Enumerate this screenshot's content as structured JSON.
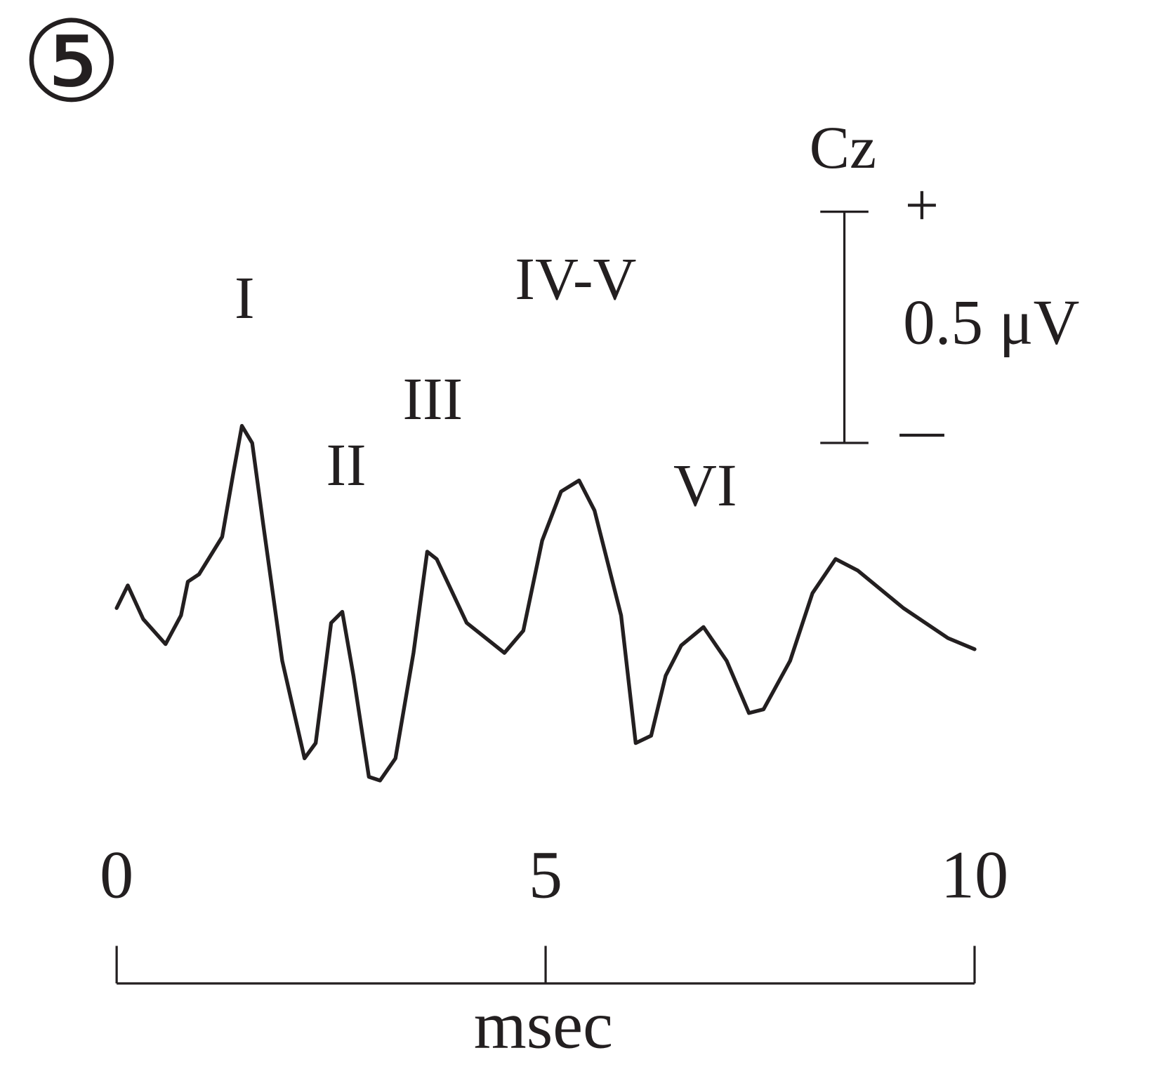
{
  "chart_data": {
    "type": "line",
    "figure_label": "⑤",
    "channel": "Cz",
    "x": [
      0,
      0.13,
      0.31,
      0.57,
      0.75,
      0.83,
      0.96,
      1.23,
      1.36,
      1.46,
      1.58,
      1.71,
      1.93,
      2.19,
      2.32,
      2.5,
      2.63,
      2.76,
      2.94,
      3.07,
      3.25,
      3.46,
      3.62,
      3.73,
      4.08,
      4.52,
      4.74,
      4.96,
      5.18,
      5.39,
      5.57,
      5.88,
      6.05,
      6.23,
      6.4,
      6.58,
      6.84,
      7.11,
      7.37,
      7.54,
      7.85,
      8.11,
      8.38,
      8.64,
      9.17,
      9.69,
      10
    ],
    "series": [
      {
        "color": "#231f20",
        "values": [
          0,
          0.049,
          -0.024,
          -0.078,
          -0.016,
          0.057,
          0.073,
          0.154,
          0.292,
          0.394,
          0.357,
          0.179,
          -0.114,
          -0.325,
          -0.292,
          -0.032,
          -0.008,
          -0.146,
          -0.365,
          -0.373,
          -0.325,
          -0.097,
          0.122,
          0.106,
          -0.032,
          -0.097,
          -0.049,
          0.146,
          0.252,
          0.276,
          0.211,
          -0.016,
          -0.292,
          -0.276,
          -0.146,
          -0.081,
          -0.041,
          -0.114,
          -0.227,
          -0.219,
          -0.114,
          0.032,
          0.106,
          0.081,
          0,
          -0.065,
          -0.089
        ]
      }
    ],
    "annotations": [
      "I",
      "II",
      "III",
      "IV-V",
      "VI"
    ],
    "scale_bar": {
      "value": 0.5,
      "label": "0.5 μV",
      "plus": "+",
      "minus": "−"
    },
    "xlim": [
      0,
      10
    ],
    "xticks": [
      0,
      5,
      10
    ],
    "xlabel": "msec"
  }
}
